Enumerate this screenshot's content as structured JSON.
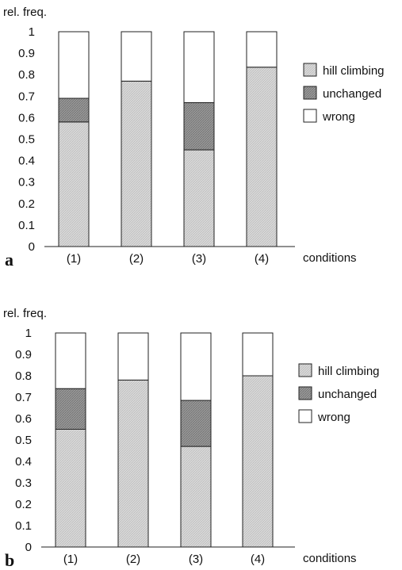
{
  "chart_data": [
    {
      "type": "bar",
      "panel_label": "a",
      "ylabel": "rel. freq.",
      "xlabel": "conditions",
      "ylim": [
        0,
        1
      ],
      "yticks": [
        "0",
        "0.1",
        "0.2",
        "0.3",
        "0.4",
        "0.5",
        "0.6",
        "0.7",
        "0.8",
        "0.9",
        "1"
      ],
      "categories": [
        "(1)",
        "(2)",
        "(3)",
        "(4)"
      ],
      "stacked": true,
      "series": [
        {
          "name": "hill climbing",
          "values": [
            0.58,
            0.77,
            0.45,
            0.835
          ]
        },
        {
          "name": "unchanged",
          "values": [
            0.11,
            0.0,
            0.22,
            0.0
          ]
        },
        {
          "name": "wrong",
          "values": [
            0.31,
            0.23,
            0.33,
            0.165
          ]
        }
      ],
      "grid": false,
      "legend": "right"
    },
    {
      "type": "bar",
      "panel_label": "b",
      "ylabel": "rel. freq.",
      "xlabel": "conditions",
      "ylim": [
        0,
        1
      ],
      "yticks": [
        "0",
        "0.1",
        "0.2",
        "0.3",
        "0.4",
        "0.5",
        "0.6",
        "0.7",
        "0.8",
        "0.9",
        "1"
      ],
      "categories": [
        "(1)",
        "(2)",
        "(3)",
        "(4)"
      ],
      "stacked": true,
      "series": [
        {
          "name": "hill climbing",
          "values": [
            0.55,
            0.78,
            0.47,
            0.8
          ]
        },
        {
          "name": "unchanged",
          "values": [
            0.19,
            0.0,
            0.215,
            0.0
          ]
        },
        {
          "name": "wrong",
          "values": [
            0.26,
            0.22,
            0.315,
            0.2
          ]
        }
      ],
      "grid": false,
      "legend": "right"
    }
  ],
  "colors": {
    "hill climbing": "#d6d6d6",
    "unchanged": "#8f8f8f",
    "wrong": "#ffffff",
    "stroke": "#222222"
  }
}
